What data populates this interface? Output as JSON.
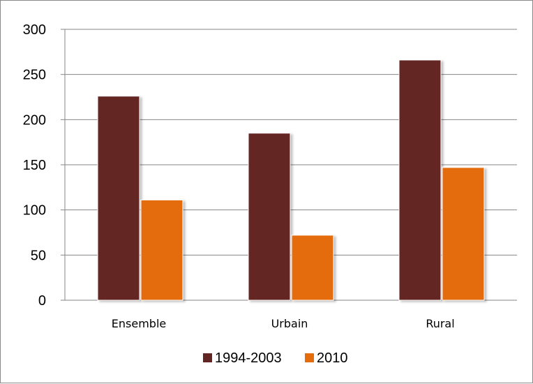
{
  "chart_data": {
    "type": "bar",
    "categories": [
      "Ensemble",
      "Urbain",
      "Rural"
    ],
    "series": [
      {
        "name": "1994-2003",
        "color": "#632523",
        "values": [
          226,
          185,
          266
        ]
      },
      {
        "name": "2010",
        "color": "#E46C0A",
        "values": [
          111,
          72,
          147
        ]
      }
    ],
    "ylim": [
      0,
      300
    ],
    "yticks": [
      "0",
      "50",
      "100",
      "150",
      "200",
      "250",
      "300"
    ],
    "grid": true,
    "legend_position": "bottom",
    "title": "",
    "xlabel": "",
    "ylabel": ""
  }
}
